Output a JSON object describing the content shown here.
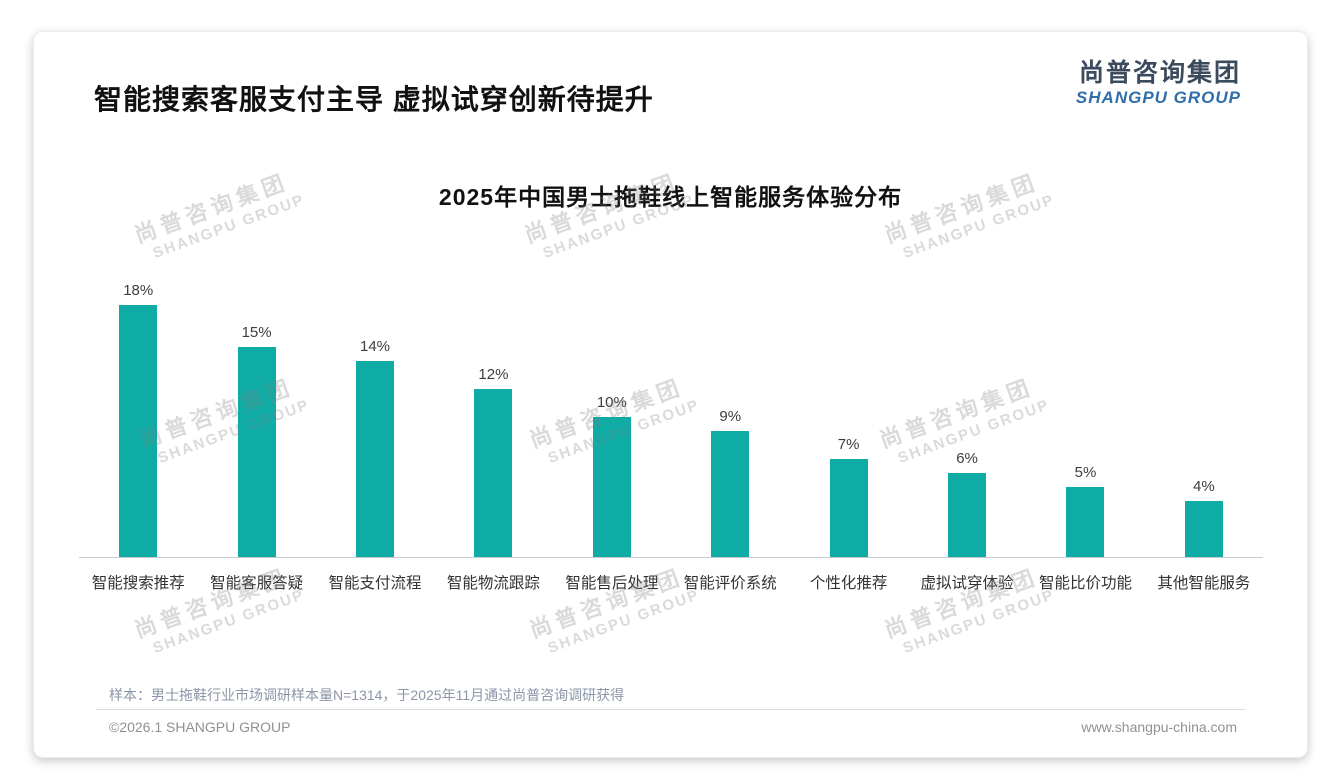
{
  "slide": {
    "title": "智能搜索客服支付主导 虚拟试穿创新待提升",
    "logo": {
      "cn": "尚普咨询集团",
      "en": "SHANGPU GROUP"
    },
    "footnote": "样本：男士拖鞋行业市场调研样本量N=1314，于2025年11月通过尚普咨询调研获得",
    "copyright": "©2026.1 SHANGPU GROUP",
    "website": "www.shangpu-china.com",
    "watermark": {
      "line1": "尚普咨询集团",
      "line2": "SHANGPU GROUP"
    }
  },
  "chart_data": {
    "type": "bar",
    "title": "2025年中国男士拖鞋线上智能服务体验分布",
    "categories": [
      "智能搜索推荐",
      "智能客服答疑",
      "智能支付流程",
      "智能物流跟踪",
      "智能售后处理",
      "智能评价系统",
      "个性化推荐",
      "虚拟试穿体验",
      "智能比价功能",
      "其他智能服务"
    ],
    "values": [
      18,
      15,
      14,
      12,
      10,
      9,
      7,
      6,
      5,
      4
    ],
    "unit": "%",
    "ylim": [
      0,
      20
    ],
    "grid": false,
    "value_labels": true,
    "legend": "none",
    "bar_color": "#0EACA4"
  },
  "colors": {
    "bar": "#0EACA4",
    "logo_navy": "#3C4A5D",
    "logo_blue": "#2F6EA9",
    "title_text": "#111111",
    "footnote_text": "#8B95A7",
    "footer_text": "#919191"
  }
}
